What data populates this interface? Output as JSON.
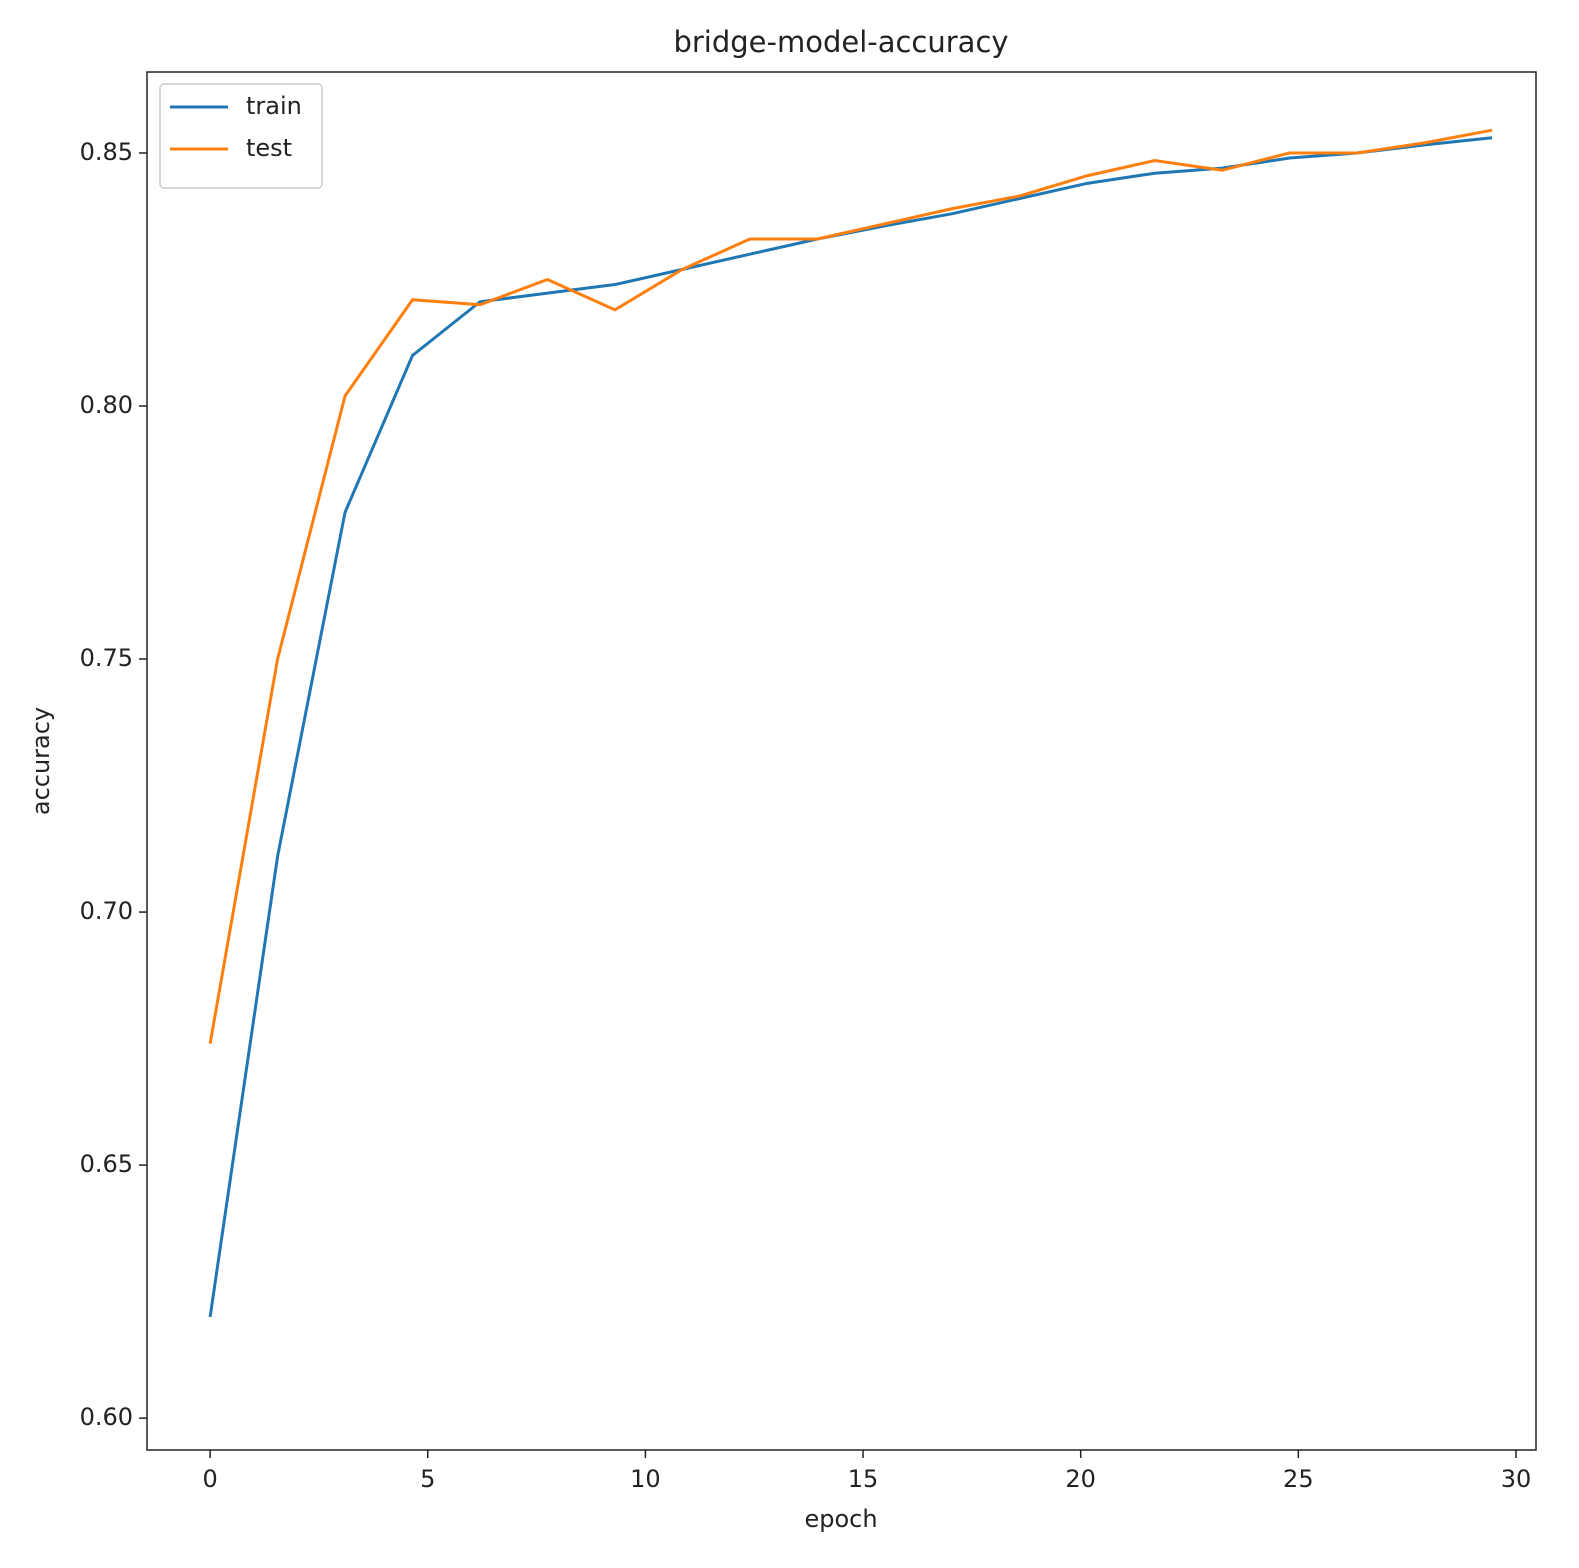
{
  "chart_data": {
    "type": "line",
    "title": "bridge-model-accuracy",
    "x_label": "epoch",
    "y_label": "accuracy",
    "x": [
      0,
      1.55,
      3.1,
      4.65,
      6.2,
      7.75,
      9.3,
      10.85,
      12.4,
      13.95,
      15.5,
      17.05,
      18.6,
      20.15,
      21.7,
      23.25,
      24.8,
      26.35,
      27.9,
      29.45
    ],
    "series": [
      {
        "name": "train",
        "color": "#1f77b4",
        "values": [
          0.62,
          0.711,
          0.779,
          0.81,
          0.8206,
          0.8223,
          0.824,
          0.827,
          0.83,
          0.833,
          0.8356,
          0.838,
          0.841,
          0.844,
          0.846,
          0.847,
          0.849,
          0.85,
          0.8516,
          0.853
        ]
      },
      {
        "name": "test",
        "color": "#ff7f0e",
        "values": [
          0.674,
          0.75,
          0.802,
          0.821,
          0.82,
          0.825,
          0.819,
          0.827,
          0.833,
          0.833,
          0.836,
          0.839,
          0.8415,
          0.8455,
          0.8485,
          0.8466,
          0.85,
          0.85,
          0.852,
          0.8545
        ]
      }
    ],
    "xlim": [
      -1.45,
      30.46
    ],
    "ylim": [
      0.5937,
      0.866
    ],
    "xticks": [
      0,
      5,
      10,
      15,
      20,
      25,
      30
    ],
    "yticks": [
      {
        "value": 0.6,
        "label": "0.60"
      },
      0.65,
      {
        "value": 0.7,
        "label": "0.70"
      },
      0.75,
      {
        "value": 0.8,
        "label": "0.80"
      },
      0.85
    ],
    "grid": false,
    "legend": "upper left"
  }
}
